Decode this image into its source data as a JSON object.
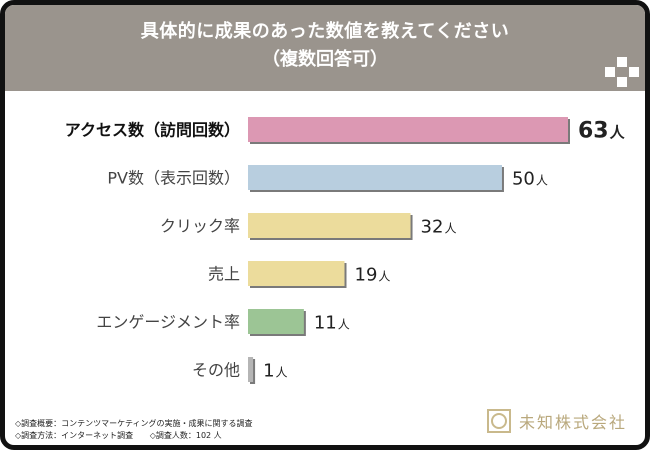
{
  "header": {
    "title_line1": "具体的に成果のあった数値を教えてください",
    "title_line2": "（複数回答可）"
  },
  "chart_data": {
    "type": "bar",
    "orientation": "horizontal",
    "unit": "人",
    "categories": [
      "アクセス数（訪問回数）",
      "PV数（表示回数）",
      "クリック率",
      "売上",
      "エンゲージメント率",
      "その他"
    ],
    "values": [
      63,
      50,
      32,
      19,
      11,
      1
    ],
    "colors": [
      "#dc98b3",
      "#b8cedf",
      "#ecdc9c",
      "#ecdc9c",
      "#9cc595",
      "#b5b5b5"
    ],
    "highlight_index": 0,
    "xlim": [
      0,
      63
    ]
  },
  "footer": {
    "line1": "◇調査概要：コンテンツマーケティングの実施・成果に関する調査",
    "line2a": "◇調査方法：インターネット調査",
    "line2b": "◇調査人数：102 人"
  },
  "logo": {
    "text": "未知株式会社"
  },
  "colors": {
    "header_bg": "#9a948d",
    "frame": "#111111",
    "logo": "#b9a87c"
  }
}
